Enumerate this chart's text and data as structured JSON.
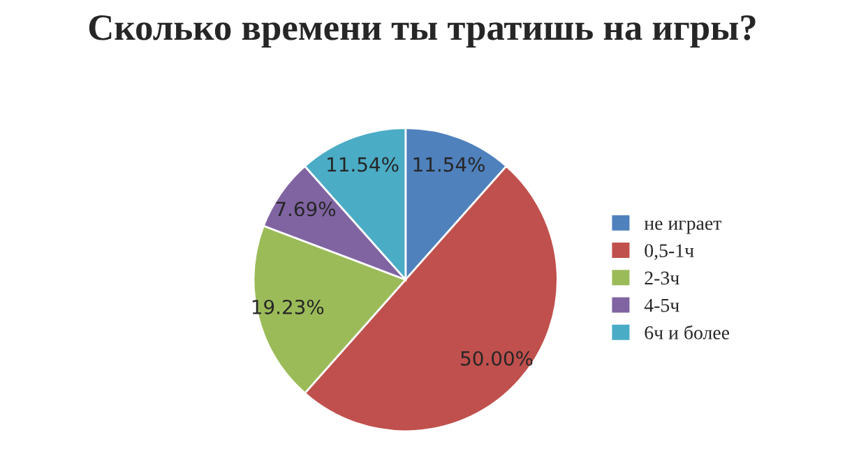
{
  "chart_data": {
    "type": "pie",
    "title": "Сколько времени ты тратишь на игры?",
    "categories": [
      "не играет",
      "0,5-1ч",
      "2-3ч",
      "4-5ч",
      "6ч и более"
    ],
    "values": [
      11.54,
      50.0,
      19.23,
      7.69,
      11.54
    ],
    "value_labels": [
      "11.54%",
      "50.00%",
      "19.23%",
      "7.69%",
      "11.54%"
    ],
    "colors": [
      "#4f81bd",
      "#c0504d",
      "#9bbb59",
      "#8064a2",
      "#4bacc6"
    ],
    "legend": "right"
  }
}
